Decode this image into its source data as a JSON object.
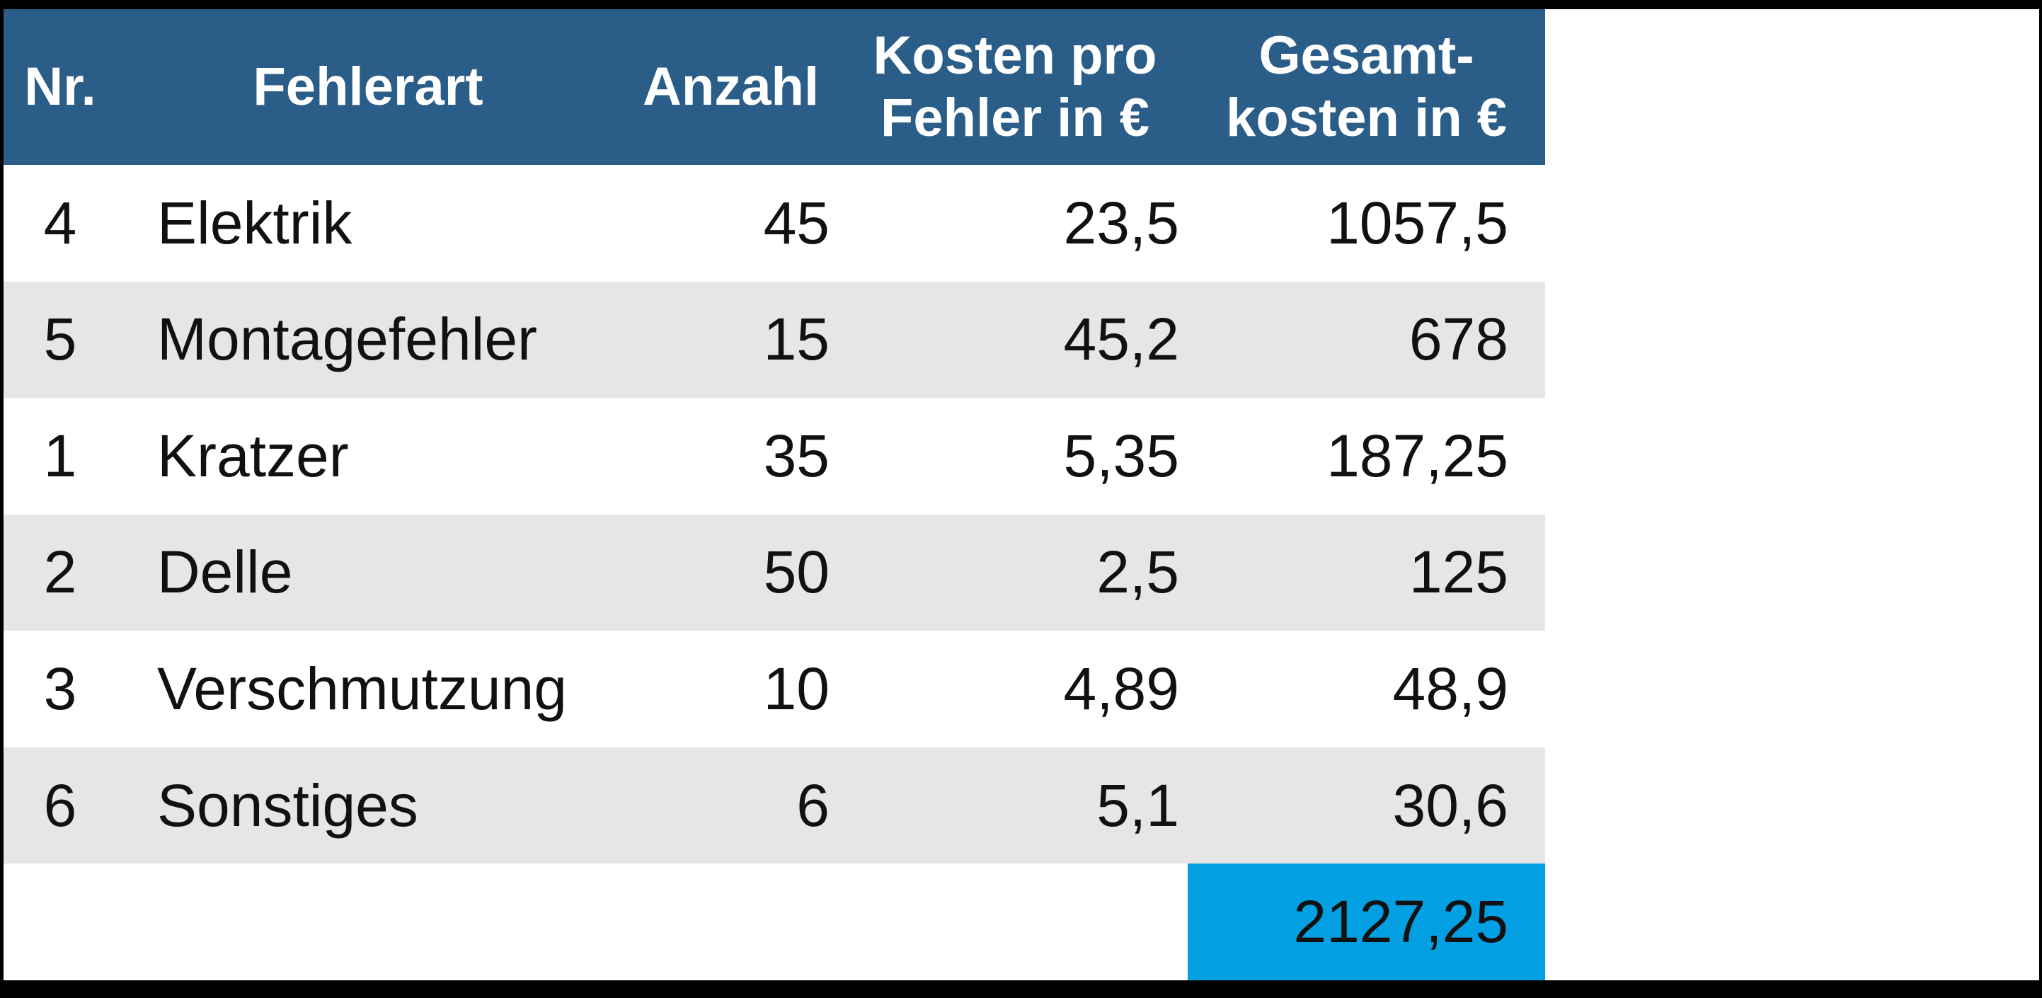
{
  "colors": {
    "frame_background": "#000000",
    "canvas_background": "#ffffff",
    "header_background": "#2A5D88",
    "header_text": "#ffffff",
    "row_background": "#ffffff",
    "row_alt_background": "#E6E6E6",
    "total_cell_background": "#029FE3",
    "body_text": "#111111"
  },
  "table": {
    "headers": {
      "nr": "Nr.",
      "fehlerart": "Fehlerart",
      "anzahl": "Anzahl",
      "kosten": "Kosten pro\nFehler in €",
      "gesamt": "Gesamt-\nkosten in €"
    },
    "rows": [
      {
        "nr": "4",
        "fehlerart": "Elektrik",
        "anzahl": "45",
        "kosten": "23,5",
        "gesamt": "1057,5"
      },
      {
        "nr": "5",
        "fehlerart": "Montagefehler",
        "anzahl": "15",
        "kosten": "45,2",
        "gesamt": "678"
      },
      {
        "nr": "1",
        "fehlerart": "Kratzer",
        "anzahl": "35",
        "kosten": "5,35",
        "gesamt": "187,25"
      },
      {
        "nr": "2",
        "fehlerart": "Delle",
        "anzahl": "50",
        "kosten": "2,5",
        "gesamt": "125"
      },
      {
        "nr": "3",
        "fehlerart": "Verschmutzung",
        "anzahl": "10",
        "kosten": "4,89",
        "gesamt": "48,9"
      },
      {
        "nr": "6",
        "fehlerart": "Sonstiges",
        "anzahl": "6",
        "kosten": "5,1",
        "gesamt": "30,6"
      }
    ],
    "total": "2127,25"
  },
  "chart_data": {
    "type": "table",
    "title": "",
    "columns": [
      "Nr.",
      "Fehlerart",
      "Anzahl",
      "Kosten pro Fehler in €",
      "Gesamt-kosten in €"
    ],
    "rows": [
      [
        4,
        "Elektrik",
        45,
        23.5,
        1057.5
      ],
      [
        5,
        "Montagefehler",
        15,
        45.2,
        678
      ],
      [
        1,
        "Kratzer",
        35,
        5.35,
        187.25
      ],
      [
        2,
        "Delle",
        50,
        2.5,
        125
      ],
      [
        3,
        "Verschmutzung",
        10,
        4.89,
        48.9
      ],
      [
        6,
        "Sonstiges",
        6,
        5.1,
        30.6
      ]
    ],
    "total_gesamtkosten": 2127.25,
    "layout_hints": {
      "decimal_separator": "comma",
      "total_cell_highlight": "#029FE3",
      "header_highlight": "#2A5D88",
      "row_banding": true
    }
  }
}
